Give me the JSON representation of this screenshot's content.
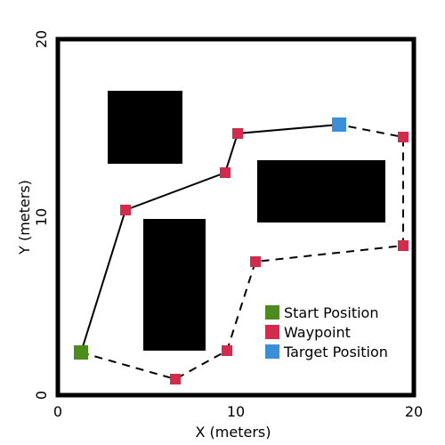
{
  "chart_data": {
    "type": "scatter",
    "title": "",
    "xlabel": "X (meters)",
    "ylabel": "Y (meters)",
    "xlim": [
      0,
      20
    ],
    "ylim": [
      0,
      20
    ],
    "xticks": [
      0,
      10,
      20
    ],
    "yticks": [
      0,
      10,
      20
    ],
    "grid": false,
    "legend_position": "bottom-right",
    "obstacles": [
      {
        "x": [
          2.8,
          7.0
        ],
        "y": [
          13.0,
          17.1
        ]
      },
      {
        "x": [
          4.8,
          8.3
        ],
        "y": [
          2.5,
          9.9
        ]
      },
      {
        "x": [
          11.2,
          18.4
        ],
        "y": [
          9.7,
          13.2
        ]
      }
    ],
    "solid_path": {
      "x": [
        1.3,
        3.8,
        9.4,
        10.1,
        15.8
      ],
      "y": [
        2.4,
        10.4,
        12.5,
        14.7,
        15.2
      ]
    },
    "dashed_path": {
      "x": [
        1.3,
        6.6,
        9.5,
        11.1,
        19.4,
        19.4,
        15.8
      ],
      "y": [
        2.4,
        0.9,
        2.5,
        7.5,
        8.4,
        14.5,
        15.2
      ]
    },
    "series": [
      {
        "name": "Start Position",
        "color": "#4c8c1c",
        "x": [
          1.3
        ],
        "y": [
          2.4
        ]
      },
      {
        "name": "Waypoint",
        "color": "#d42a4c",
        "x": [
          3.8,
          9.4,
          10.1,
          6.6,
          9.5,
          11.1,
          19.4,
          19.4
        ],
        "y": [
          10.4,
          12.5,
          14.7,
          0.9,
          2.5,
          7.5,
          8.4,
          14.5
        ]
      },
      {
        "name": "Target Position",
        "color": "#3a8fd8",
        "x": [
          15.8
        ],
        "y": [
          15.2
        ]
      }
    ]
  }
}
